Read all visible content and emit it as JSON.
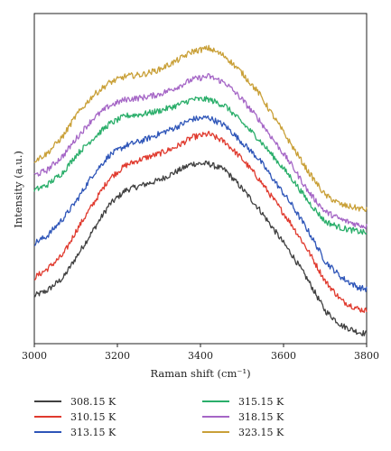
{
  "chart_data": {
    "type": "line",
    "xlabel": "Raman shift (cm⁻¹)",
    "ylabel": "Intensity (a.u.)",
    "xlim": [
      3000,
      3800
    ],
    "ylim": [
      0,
      1
    ],
    "x_ticks": [
      "3000",
      "3200",
      "3400",
      "3600",
      "3800"
    ],
    "y_ticks": [],
    "legend_position": "bottom",
    "grid": false,
    "noise": "high-frequency noise",
    "series": [
      {
        "name": "308.15 K",
        "color": "#404040",
        "x": [
          3000,
          3030,
          3070,
          3100,
          3140,
          3180,
          3220,
          3260,
          3300,
          3340,
          3380,
          3420,
          3460,
          3500,
          3540,
          3580,
          3620,
          3660,
          3700,
          3740,
          3780,
          3800
        ],
        "y": [
          0.145,
          0.16,
          0.2,
          0.26,
          0.34,
          0.42,
          0.465,
          0.48,
          0.495,
          0.52,
          0.545,
          0.545,
          0.525,
          0.47,
          0.41,
          0.34,
          0.27,
          0.19,
          0.1,
          0.055,
          0.035,
          0.03
        ]
      },
      {
        "name": "310.15 K",
        "color": "#e03a2e",
        "x": [
          3000,
          3030,
          3070,
          3100,
          3140,
          3180,
          3220,
          3260,
          3300,
          3340,
          3380,
          3420,
          3460,
          3500,
          3540,
          3580,
          3620,
          3660,
          3700,
          3740,
          3780,
          3800
        ],
        "y": [
          0.2,
          0.225,
          0.27,
          0.34,
          0.42,
          0.5,
          0.54,
          0.56,
          0.575,
          0.595,
          0.625,
          0.635,
          0.61,
          0.56,
          0.5,
          0.43,
          0.36,
          0.28,
          0.19,
          0.13,
          0.105,
          0.1
        ]
      },
      {
        "name": "313.15 K",
        "color": "#2e55b8",
        "x": [
          3000,
          3030,
          3070,
          3100,
          3140,
          3180,
          3220,
          3260,
          3300,
          3340,
          3380,
          3420,
          3460,
          3500,
          3540,
          3580,
          3620,
          3660,
          3700,
          3740,
          3780,
          3800
        ],
        "y": [
          0.305,
          0.325,
          0.38,
          0.43,
          0.51,
          0.57,
          0.6,
          0.615,
          0.635,
          0.655,
          0.68,
          0.685,
          0.66,
          0.61,
          0.56,
          0.49,
          0.42,
          0.34,
          0.25,
          0.2,
          0.17,
          0.165
        ]
      },
      {
        "name": "315.15 K",
        "color": "#2aae6a",
        "x": [
          3000,
          3030,
          3070,
          3100,
          3140,
          3180,
          3220,
          3260,
          3300,
          3340,
          3380,
          3420,
          3460,
          3500,
          3540,
          3580,
          3620,
          3660,
          3700,
          3740,
          3780,
          3800
        ],
        "y": [
          0.465,
          0.48,
          0.52,
          0.57,
          0.62,
          0.665,
          0.69,
          0.695,
          0.705,
          0.72,
          0.74,
          0.74,
          0.72,
          0.67,
          0.62,
          0.56,
          0.5,
          0.43,
          0.37,
          0.35,
          0.34,
          0.335
        ]
      },
      {
        "name": "318.15 K",
        "color": "#a566c6",
        "x": [
          3000,
          3030,
          3070,
          3100,
          3140,
          3180,
          3220,
          3260,
          3300,
          3340,
          3380,
          3420,
          3460,
          3500,
          3540,
          3580,
          3620,
          3660,
          3700,
          3740,
          3780,
          3800
        ],
        "y": [
          0.51,
          0.525,
          0.57,
          0.62,
          0.68,
          0.72,
          0.74,
          0.745,
          0.755,
          0.775,
          0.8,
          0.81,
          0.79,
          0.74,
          0.68,
          0.61,
          0.54,
          0.46,
          0.4,
          0.375,
          0.36,
          0.355
        ]
      },
      {
        "name": "323.15 K",
        "color": "#c9a038",
        "x": [
          3000,
          3030,
          3070,
          3100,
          3140,
          3180,
          3220,
          3260,
          3300,
          3340,
          3380,
          3420,
          3460,
          3500,
          3540,
          3580,
          3620,
          3660,
          3700,
          3740,
          3780,
          3800
        ],
        "y": [
          0.555,
          0.575,
          0.63,
          0.69,
          0.75,
          0.79,
          0.81,
          0.815,
          0.83,
          0.855,
          0.885,
          0.895,
          0.87,
          0.82,
          0.76,
          0.68,
          0.6,
          0.52,
          0.45,
          0.42,
          0.41,
          0.405
        ]
      }
    ]
  }
}
